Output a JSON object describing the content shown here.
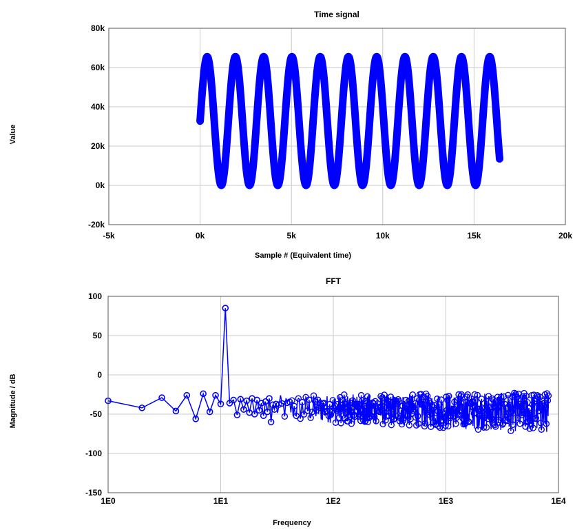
{
  "chart_data": [
    {
      "type": "scatter",
      "title": "Time signal",
      "xlabel": "Sample # (Equivalent time)",
      "ylabel": "Value",
      "xlim": [
        -5000,
        20000
      ],
      "ylim": [
        -20000,
        80000
      ],
      "x_ticks": [
        -5000,
        0,
        5000,
        10000,
        15000,
        20000
      ],
      "x_tick_labels": [
        "-5k",
        "0k",
        "5k",
        "10k",
        "15k",
        "20k"
      ],
      "y_ticks": [
        -20000,
        0,
        20000,
        40000,
        60000,
        80000
      ],
      "y_tick_labels": [
        "-20k",
        "0k",
        "20k",
        "40k",
        "60k",
        "80k"
      ],
      "grid": true,
      "color": "#0000ff",
      "series": [
        {
          "x_range": [
            0,
            16400
          ],
          "periods": 10.6,
          "mean": 32768,
          "amplitude": 32768
        }
      ]
    },
    {
      "type": "line",
      "title": "FFT",
      "xlabel": "Frequency",
      "ylabel": "Magnitude / dB",
      "x_scale": "log",
      "xlim": [
        1,
        10000
      ],
      "ylim": [
        -150,
        100
      ],
      "x_ticks": [
        1,
        10,
        100,
        1000,
        10000
      ],
      "x_tick_labels": [
        "1E0",
        "1E1",
        "1E2",
        "1E3",
        "1E4"
      ],
      "y_ticks": [
        -150,
        -100,
        -50,
        0,
        50,
        100
      ],
      "y_tick_labels": [
        "-150",
        "-100",
        "-50",
        "0",
        "50",
        "100"
      ],
      "grid": true,
      "color": "#0000ff",
      "marker": "circle",
      "series": [
        {
          "x": [
            1,
            2,
            3,
            4,
            5,
            6,
            7,
            8,
            9,
            10,
            11,
            12,
            13,
            14,
            15,
            16,
            17,
            18,
            19,
            20,
            21,
            22,
            23,
            24,
            25,
            26,
            27,
            28,
            29,
            30
          ],
          "y": [
            -33,
            -42,
            -29,
            -46,
            -26,
            -56,
            -24,
            -47,
            -26,
            -37,
            85,
            -36,
            -32,
            -51,
            -31,
            -44,
            -33,
            -48,
            -30,
            -50,
            -32,
            -45,
            -36,
            -52,
            -34,
            -47,
            -30,
            -60,
            -38,
            -44
          ]
        }
      ],
      "noise_band": {
        "x_range": [
          30,
          8192
        ],
        "y_range": [
          -82,
          -18
        ]
      }
    }
  ]
}
